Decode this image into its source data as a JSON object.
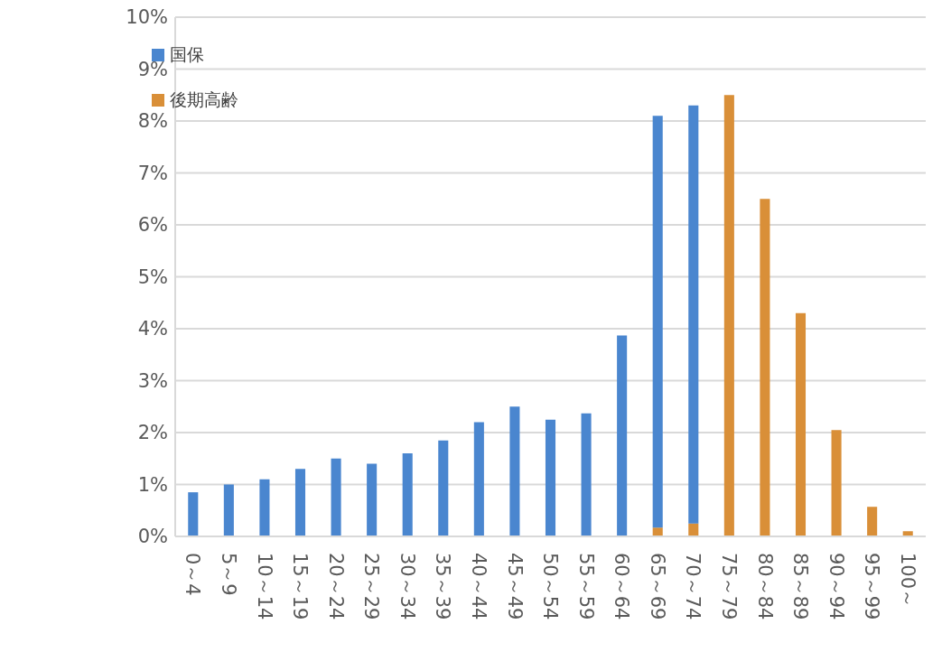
{
  "chart_data": {
    "type": "bar",
    "stacked": true,
    "categories": [
      "0～4",
      "5～9",
      "10～14",
      "15～19",
      "20～24",
      "25～29",
      "30～34",
      "35～39",
      "40～44",
      "45～49",
      "50～54",
      "55～59",
      "60～64",
      "65～69",
      "70～74",
      "75～79",
      "80～84",
      "85～89",
      "90～94",
      "95～99",
      "100～"
    ],
    "series": [
      {
        "name": "後期高齢",
        "color": "#d98f38",
        "values": [
          null,
          null,
          null,
          null,
          null,
          null,
          null,
          null,
          null,
          null,
          null,
          null,
          null,
          0.17,
          0.25,
          8.5,
          6.5,
          4.3,
          2.05,
          0.57,
          0.1
        ]
      },
      {
        "name": "国保",
        "color": "#4a86cf",
        "values": [
          0.85,
          1.0,
          1.1,
          1.3,
          1.5,
          1.4,
          1.6,
          1.85,
          2.2,
          2.5,
          2.25,
          2.37,
          3.87,
          7.93,
          8.05,
          null,
          null,
          null,
          null,
          null,
          null
        ]
      }
    ],
    "ylim": [
      0,
      10
    ],
    "yticks": [
      {
        "value": 0,
        "label": "0%"
      },
      {
        "value": 1,
        "label": "1%"
      },
      {
        "value": 2,
        "label": "2%"
      },
      {
        "value": 3,
        "label": "3%"
      },
      {
        "value": 4,
        "label": "4%"
      },
      {
        "value": 5,
        "label": "5%"
      },
      {
        "value": 6,
        "label": "6%"
      },
      {
        "value": 7,
        "label": "7%"
      },
      {
        "value": 8,
        "label": "8%"
      },
      {
        "value": 9,
        "label": "9%"
      },
      {
        "value": 10,
        "label": "10%"
      }
    ],
    "grid": "y",
    "legend": "top left"
  }
}
